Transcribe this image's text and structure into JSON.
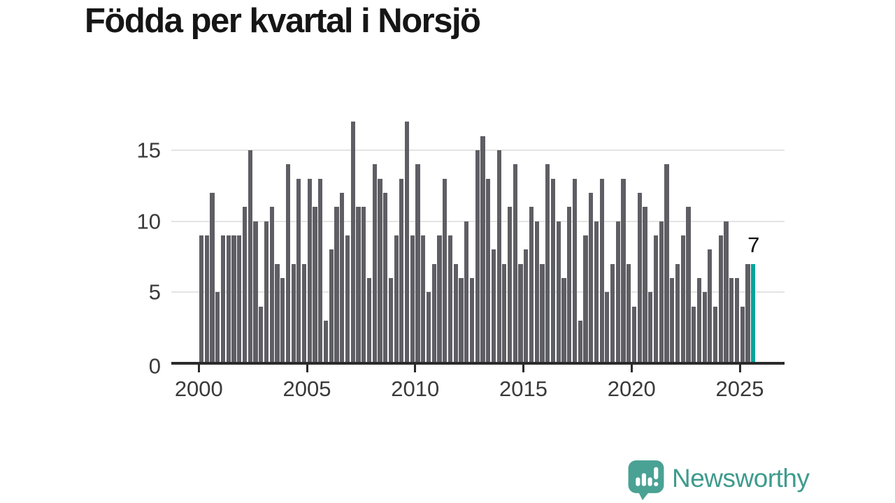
{
  "header": {
    "title": "Födda per kvartal i Norsjö"
  },
  "chart_data": {
    "type": "bar",
    "title": "Födda per kvartal i Norsjö",
    "x_frequency": "quarterly",
    "categories_start": "2000-Q1",
    "categories_end": "2025-Q3",
    "series_by_year": [
      {
        "year": 2000,
        "values": [
          9,
          9,
          12,
          5
        ]
      },
      {
        "year": 2001,
        "values": [
          9,
          9,
          9,
          9
        ]
      },
      {
        "year": 2002,
        "values": [
          11,
          15,
          10,
          4
        ]
      },
      {
        "year": 2003,
        "values": [
          10,
          11,
          7,
          6
        ]
      },
      {
        "year": 2004,
        "values": [
          14,
          7,
          13,
          7
        ]
      },
      {
        "year": 2005,
        "values": [
          13,
          11,
          13,
          3
        ]
      },
      {
        "year": 2006,
        "values": [
          8,
          11,
          12,
          9
        ]
      },
      {
        "year": 2007,
        "values": [
          17,
          11,
          11,
          6
        ]
      },
      {
        "year": 2008,
        "values": [
          14,
          13,
          12,
          6
        ]
      },
      {
        "year": 2009,
        "values": [
          9,
          13,
          17,
          9
        ]
      },
      {
        "year": 2010,
        "values": [
          14,
          9,
          5,
          7
        ]
      },
      {
        "year": 2011,
        "values": [
          9,
          13,
          9,
          7
        ]
      },
      {
        "year": 2012,
        "values": [
          6,
          10,
          6,
          15
        ]
      },
      {
        "year": 2013,
        "values": [
          16,
          13,
          8,
          15
        ]
      },
      {
        "year": 2014,
        "values": [
          7,
          11,
          14,
          7
        ]
      },
      {
        "year": 2015,
        "values": [
          8,
          11,
          10,
          7
        ]
      },
      {
        "year": 2016,
        "values": [
          14,
          13,
          10,
          6
        ]
      },
      {
        "year": 2017,
        "values": [
          11,
          13,
          3,
          9
        ]
      },
      {
        "year": 2018,
        "values": [
          12,
          10,
          13,
          5
        ]
      },
      {
        "year": 2019,
        "values": [
          7,
          10,
          13,
          7
        ]
      },
      {
        "year": 2020,
        "values": [
          4,
          12,
          11,
          5
        ]
      },
      {
        "year": 2021,
        "values": [
          9,
          10,
          14,
          6
        ]
      },
      {
        "year": 2022,
        "values": [
          7,
          9,
          11,
          4
        ]
      },
      {
        "year": 2023,
        "values": [
          6,
          5,
          8,
          4
        ]
      },
      {
        "year": 2024,
        "values": [
          9,
          10,
          6,
          6
        ]
      },
      {
        "year": 2025,
        "values": [
          4,
          7,
          7
        ]
      }
    ],
    "highlight": {
      "category": "2025-Q3",
      "value": 7,
      "label": "7"
    },
    "y_ticks": [
      "0",
      "5",
      "10",
      "15"
    ],
    "x_tick_labels": [
      "2000",
      "2005",
      "2010",
      "2015",
      "2020",
      "2025"
    ],
    "ylim": [
      0,
      17.5
    ],
    "grid": "horizontal",
    "legend": "none",
    "colors": {
      "bar": "#5e5e64",
      "highlight": "#00a69b",
      "axis": "#2b2b2b",
      "gridline": "#e4e4e4",
      "tick_label": "#3a3a3a",
      "annotation": "#111111"
    }
  },
  "footer": {
    "brand": {
      "name": "Newsworthy",
      "icon": "bar-chart-exclamation-badge-icon",
      "badge_color": "#4aa294",
      "text_color": "#3e9b8d"
    }
  }
}
